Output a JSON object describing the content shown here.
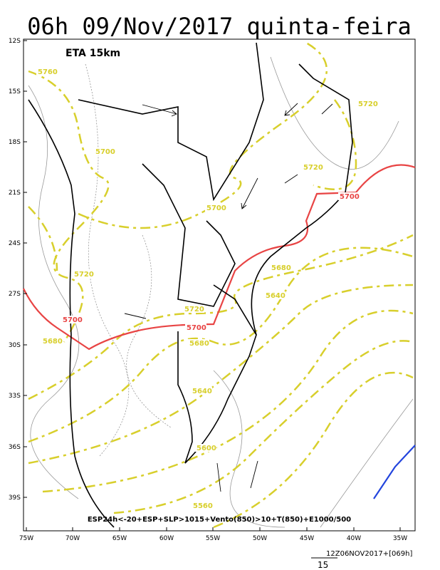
{
  "title": "06h 09/Nov/2017 quinta-feira",
  "model": "ETA 15km",
  "lat_labels": [
    "12S",
    "15S",
    "18S",
    "21S",
    "24S",
    "27S",
    "30S",
    "33S",
    "36S",
    "39S"
  ],
  "lon_labels": [
    "75W",
    "70W",
    "65W",
    "60W",
    "55W",
    "50W",
    "45W",
    "40W",
    "35W"
  ],
  "contour_labels": [
    {
      "text": "5760",
      "color": "#d8cf2c"
    },
    {
      "text": "5700",
      "color": "#d8cf2c"
    },
    {
      "text": "5720",
      "color": "#d8cf2c"
    },
    {
      "text": "5720",
      "color": "#d8cf2c"
    },
    {
      "text": "5700",
      "color": "#d8cf2c"
    },
    {
      "text": "5700",
      "color": "#e84444"
    },
    {
      "text": "5720",
      "color": "#d8cf2c"
    },
    {
      "text": "5680",
      "color": "#d8cf2c"
    },
    {
      "text": "5640",
      "color": "#d8cf2c"
    },
    {
      "text": "5720",
      "color": "#d8cf2c"
    },
    {
      "text": "5700",
      "color": "#e84444"
    },
    {
      "text": "5700",
      "color": "#e84444"
    },
    {
      "text": "5680",
      "color": "#d8cf2c"
    },
    {
      "text": "5680",
      "color": "#d8cf2c"
    },
    {
      "text": "5640",
      "color": "#d8cf2c"
    },
    {
      "text": "5600",
      "color": "#d8cf2c"
    },
    {
      "text": "5560",
      "color": "#d8cf2c"
    }
  ],
  "caption": "ESP24h<-20+ESP+SLP>1015+Vento(850)>10+T(850)+E1000/500",
  "timestamp": "12Z06NOV2017+[069h]",
  "scale": "15"
}
